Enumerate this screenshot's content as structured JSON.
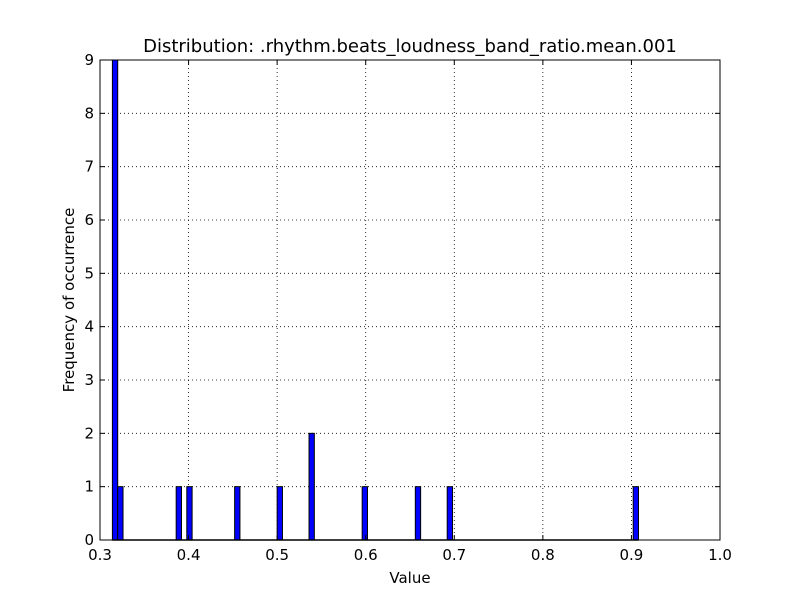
{
  "chart_data": {
    "type": "bar",
    "title": "Distribution: .rhythm.beats_loudness_band_ratio.mean.001",
    "xlabel": "Value",
    "ylabel": "Frequency of occurrence",
    "xlim": [
      0.3,
      1.0
    ],
    "ylim": [
      0,
      9
    ],
    "xticks": [
      "0.3",
      "0.4",
      "0.5",
      "0.6",
      "0.7",
      "0.8",
      "0.9",
      "1.0"
    ],
    "yticks": [
      "0",
      "1",
      "2",
      "3",
      "4",
      "5",
      "6",
      "7",
      "8",
      "9"
    ],
    "grid": true,
    "bin_width": 0.006,
    "bins": [
      {
        "x": 0.314,
        "value": 9
      },
      {
        "x": 0.32,
        "value": 1
      },
      {
        "x": 0.386,
        "value": 1
      },
      {
        "x": 0.398,
        "value": 1
      },
      {
        "x": 0.452,
        "value": 1
      },
      {
        "x": 0.5,
        "value": 1
      },
      {
        "x": 0.536,
        "value": 2
      },
      {
        "x": 0.596,
        "value": 1
      },
      {
        "x": 0.656,
        "value": 1
      },
      {
        "x": 0.692,
        "value": 1
      },
      {
        "x": 0.902,
        "value": 1
      }
    ],
    "bar_color": "#0000ff",
    "edge_color": "#000000"
  }
}
